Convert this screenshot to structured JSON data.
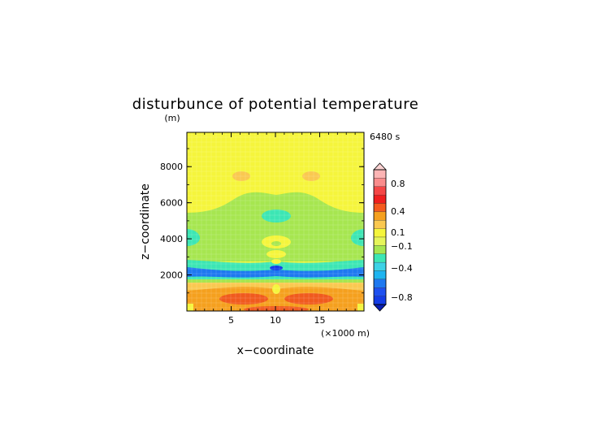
{
  "chart_data": {
    "type": "heatmap",
    "title": "disturbunce of potential temperature",
    "time_label": "6480 s",
    "xlabel": "x−coordinate",
    "ylabel": "z−coordinate",
    "x_units": "(×1000 m)",
    "y_units": "(m)",
    "xlim": [
      0,
      20
    ],
    "ylim": [
      0,
      9900
    ],
    "x_ticks": [
      "5",
      "10",
      "15"
    ],
    "y_ticks": [
      "2000",
      "4000",
      "6000",
      "8000"
    ],
    "colorbar": {
      "labels": [
        "0.8",
        "0.4",
        "0.1",
        "−0.1",
        "−0.4",
        "−0.8"
      ]
    },
    "colors": {
      "yellow": "#f5f53c",
      "lightgreen": "#a6e650",
      "cyan": "#3ce6b4",
      "blue": "#1e78f0",
      "darkblue": "#143ce6",
      "orange_light": "#fac850",
      "orange": "#f5a01e",
      "red_orange": "#f05a1e"
    }
  }
}
